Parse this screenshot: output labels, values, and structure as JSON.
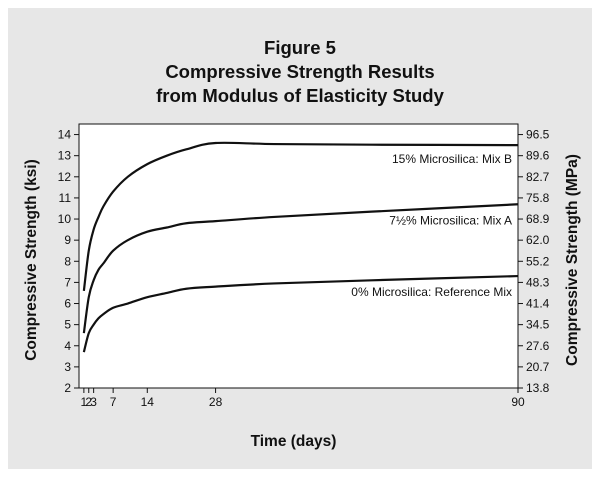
{
  "chart_data": {
    "type": "line",
    "title_lines": [
      "Figure 5",
      "Compressive Strength Results",
      "from Modulus of Elasticity Study"
    ],
    "xlabel": "Time (days)",
    "ylabel": "Compressive Strength (ksi)",
    "ylabel_right": "Compressive Strength (MPa)",
    "xlim": [
      0,
      90
    ],
    "ylim": [
      2,
      14.5
    ],
    "x_ticks": [
      1,
      2,
      3,
      7,
      14,
      28,
      90
    ],
    "y_ticks": [
      2,
      3,
      4,
      5,
      6,
      7,
      8,
      9,
      10,
      11,
      12,
      13,
      14
    ],
    "y_ticks_right": [
      {
        "label": "13.8",
        "ksi": 2
      },
      {
        "label": "20.7",
        "ksi": 3
      },
      {
        "label": "27.6",
        "ksi": 4
      },
      {
        "label": "34.5",
        "ksi": 5
      },
      {
        "label": "41.4",
        "ksi": 6
      },
      {
        "label": "48.3",
        "ksi": 7
      },
      {
        "label": "55.2",
        "ksi": 8
      },
      {
        "label": "62.0",
        "ksi": 9
      },
      {
        "label": "68.9",
        "ksi": 10
      },
      {
        "label": "75.8",
        "ksi": 11
      },
      {
        "label": "82.7",
        "ksi": 12
      },
      {
        "label": "89.6",
        "ksi": 13
      },
      {
        "label": "96.5",
        "ksi": 14
      }
    ],
    "series": [
      {
        "name": "15% Microsilica: Mix B",
        "color": "#111111",
        "x": [
          1,
          2,
          3,
          4,
          5,
          7,
          10,
          14,
          18,
          22,
          28,
          40,
          60,
          90
        ],
        "y": [
          6.6,
          8.5,
          9.5,
          10.1,
          10.6,
          11.3,
          12.0,
          12.6,
          13.0,
          13.3,
          13.6,
          13.55,
          13.52,
          13.5
        ]
      },
      {
        "name": "7½% Microsilica: Mix A",
        "color": "#111111",
        "x": [
          1,
          2,
          3,
          4,
          5,
          7,
          10,
          14,
          18,
          22,
          28,
          40,
          60,
          90
        ],
        "y": [
          4.6,
          6.3,
          7.1,
          7.6,
          7.9,
          8.5,
          9.0,
          9.4,
          9.6,
          9.8,
          9.9,
          10.1,
          10.35,
          10.7
        ]
      },
      {
        "name": "0% Microsilica: Reference Mix",
        "color": "#111111",
        "x": [
          1,
          2,
          3,
          4,
          5,
          7,
          10,
          14,
          18,
          22,
          28,
          40,
          60,
          90
        ],
        "y": [
          3.7,
          4.6,
          5.0,
          5.3,
          5.5,
          5.8,
          6.0,
          6.3,
          6.5,
          6.7,
          6.8,
          6.95,
          7.1,
          7.3
        ]
      }
    ]
  }
}
